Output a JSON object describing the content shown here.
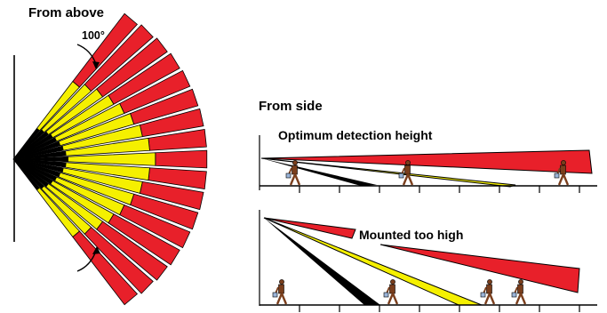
{
  "top_view": {
    "title": "From above",
    "angle_label": "100°"
  },
  "side_view": {
    "title": "From side",
    "optimum_label": "Optimum detection height",
    "too_high_label": "Mounted too high"
  },
  "colors": {
    "red": "#e8202a",
    "yellow": "#f5f000",
    "black": "#000000",
    "person": "#7a3e1c",
    "bag": "#9ab4d8"
  }
}
